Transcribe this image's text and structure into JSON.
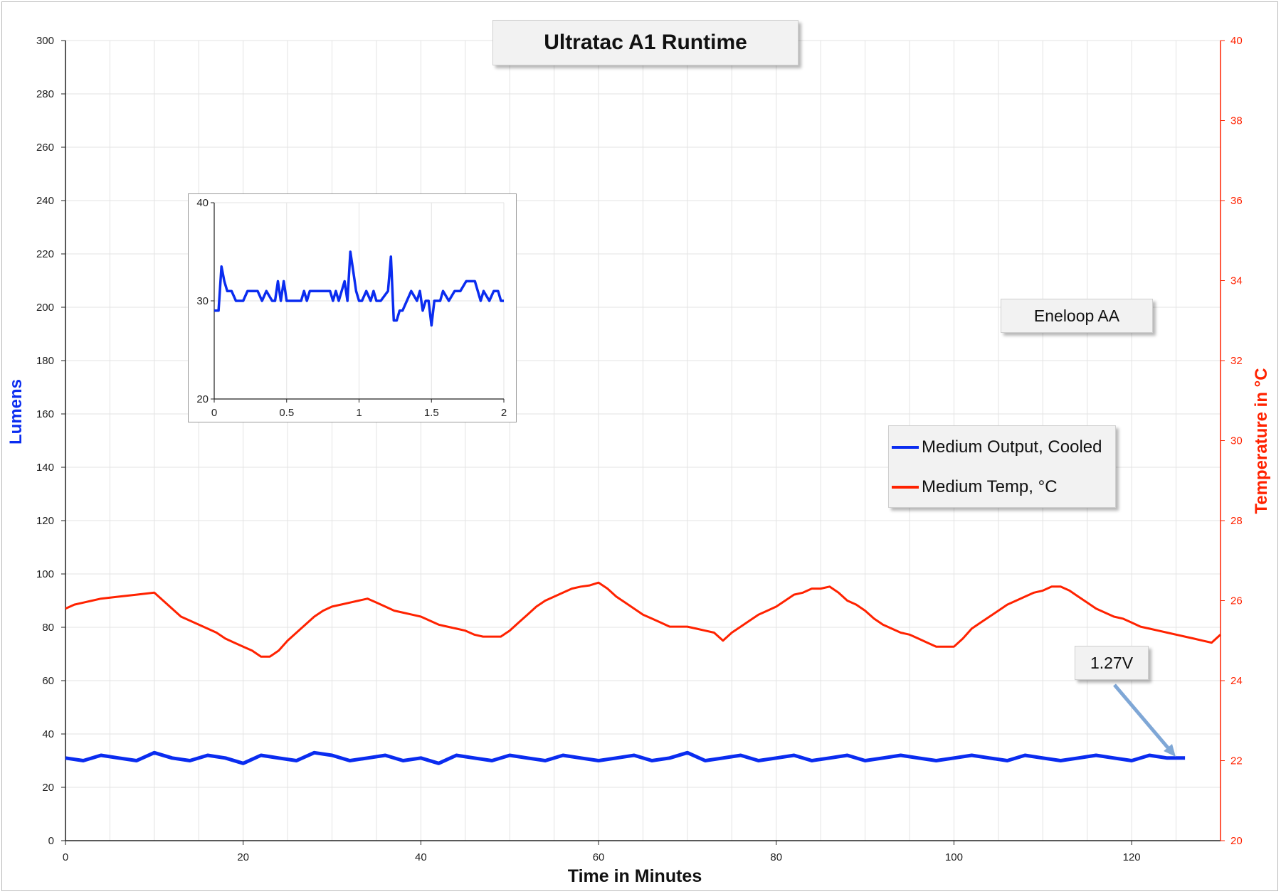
{
  "title": "Ultratac A1 Runtime",
  "battery_label": "Eneloop AA",
  "voltage_label": "1.27V",
  "colors": {
    "lumens": "#0a2cf0",
    "temp": "#ff2200",
    "grid": "#e3e3e3"
  },
  "legend": {
    "items": [
      {
        "label": "Medium Output, Cooled",
        "color": "#0a2cf0"
      },
      {
        "label": "Medium Temp, °C",
        "color": "#ff2200"
      }
    ]
  },
  "chart_data": [
    {
      "type": "line",
      "title": "Ultratac A1 Runtime",
      "xlabel": "Time in Minutes",
      "ylabel_left": "Lumens",
      "ylabel_right": "Temperature in °C",
      "xlim": [
        0,
        130
      ],
      "ylim_left": [
        0,
        300
      ],
      "ylim_right": [
        20,
        40
      ],
      "x_ticks": [
        "0",
        "20",
        "40",
        "60",
        "80",
        "100",
        "120"
      ],
      "y_left_ticks": [
        "0",
        "20",
        "40",
        "60",
        "80",
        "100",
        "120",
        "140",
        "160",
        "180",
        "200",
        "220",
        "240",
        "260",
        "280",
        "300"
      ],
      "y_right_ticks": [
        "20",
        "22",
        "24",
        "26",
        "28",
        "30",
        "32",
        "34",
        "36",
        "38",
        "40"
      ],
      "grid": true,
      "legend_position": "right",
      "series": [
        {
          "name": "Medium Output, Cooled",
          "axis": "left",
          "color": "#0a2cf0",
          "x": [
            0,
            2,
            4,
            6,
            8,
            10,
            12,
            14,
            16,
            18,
            20,
            22,
            24,
            26,
            28,
            30,
            32,
            34,
            36,
            38,
            40,
            42,
            44,
            46,
            48,
            50,
            52,
            54,
            56,
            58,
            60,
            62,
            64,
            66,
            68,
            70,
            72,
            74,
            76,
            78,
            80,
            82,
            84,
            86,
            88,
            90,
            92,
            94,
            96,
            98,
            100,
            102,
            104,
            106,
            108,
            110,
            112,
            114,
            116,
            118,
            120,
            122,
            124,
            126
          ],
          "values": [
            31,
            30,
            32,
            31,
            30,
            33,
            31,
            30,
            32,
            31,
            29,
            32,
            31,
            30,
            33,
            32,
            30,
            31,
            32,
            30,
            31,
            29,
            32,
            31,
            30,
            32,
            31,
            30,
            32,
            31,
            30,
            31,
            32,
            30,
            31,
            33,
            30,
            31,
            32,
            30,
            31,
            32,
            30,
            31,
            32,
            30,
            31,
            32,
            31,
            30,
            31,
            32,
            31,
            30,
            32,
            31,
            30,
            31,
            32,
            31,
            30,
            32,
            31,
            31
          ]
        },
        {
          "name": "Medium Temp, °C",
          "axis": "right",
          "color": "#ff2200",
          "x": [
            0,
            1,
            2,
            4,
            6,
            8,
            10,
            11,
            12,
            13,
            14,
            15,
            16,
            17,
            18,
            19,
            20,
            21,
            22,
            23,
            24,
            25,
            26,
            27,
            28,
            29,
            30,
            31,
            32,
            33,
            34,
            35,
            36,
            37,
            38,
            39,
            40,
            41,
            42,
            43,
            44,
            45,
            46,
            47,
            48,
            49,
            50,
            51,
            52,
            53,
            54,
            55,
            56,
            57,
            58,
            59,
            60,
            61,
            62,
            63,
            64,
            65,
            66,
            67,
            68,
            69,
            70,
            71,
            72,
            73,
            74,
            75,
            76,
            77,
            78,
            79,
            80,
            81,
            82,
            83,
            84,
            85,
            86,
            87,
            88,
            89,
            90,
            91,
            92,
            93,
            94,
            95,
            96,
            97,
            98,
            99,
            100,
            101,
            102,
            103,
            104,
            105,
            106,
            107,
            108,
            109,
            110,
            111,
            112,
            113,
            114,
            115,
            116,
            117,
            118,
            119,
            120,
            121,
            122,
            123,
            124,
            125,
            126,
            127,
            128,
            129,
            130
          ],
          "values": [
            25.8,
            25.9,
            25.95,
            26.05,
            26.1,
            26.15,
            26.2,
            26.0,
            25.8,
            25.6,
            25.5,
            25.4,
            25.3,
            25.2,
            25.05,
            24.95,
            24.85,
            24.75,
            24.6,
            24.6,
            24.75,
            25.0,
            25.2,
            25.4,
            25.6,
            25.75,
            25.85,
            25.9,
            25.95,
            26.0,
            26.05,
            25.95,
            25.85,
            25.75,
            25.7,
            25.65,
            25.6,
            25.5,
            25.4,
            25.35,
            25.3,
            25.25,
            25.15,
            25.1,
            25.1,
            25.1,
            25.25,
            25.45,
            25.65,
            25.85,
            26.0,
            26.1,
            26.2,
            26.3,
            26.35,
            26.38,
            26.45,
            26.3,
            26.1,
            25.95,
            25.8,
            25.65,
            25.55,
            25.45,
            25.35,
            25.35,
            25.35,
            25.3,
            25.25,
            25.2,
            25.0,
            25.2,
            25.35,
            25.5,
            25.65,
            25.75,
            25.85,
            26.0,
            26.15,
            26.2,
            26.3,
            26.3,
            26.35,
            26.2,
            26.0,
            25.9,
            25.75,
            25.55,
            25.4,
            25.3,
            25.2,
            25.15,
            25.05,
            24.95,
            24.85,
            24.85,
            24.85,
            25.05,
            25.3,
            25.45,
            25.6,
            25.75,
            25.9,
            26.0,
            26.1,
            26.2,
            26.25,
            26.35,
            26.35,
            26.25,
            26.1,
            25.95,
            25.8,
            25.7,
            25.6,
            25.55,
            25.45,
            25.35,
            25.3,
            25.25,
            25.2,
            25.15,
            25.1,
            25.05,
            25.0,
            24.95,
            25.15
          ]
        }
      ]
    },
    {
      "type": "line",
      "title": "",
      "xlim": [
        0,
        2
      ],
      "ylim": [
        20,
        40
      ],
      "x_ticks": [
        "0",
        "0.5",
        "1",
        "1.5",
        "2"
      ],
      "y_ticks": [
        "20",
        "30",
        "40"
      ],
      "grid": true,
      "series": [
        {
          "color": "#0a2cf0",
          "x": [
            0,
            0.03,
            0.05,
            0.07,
            0.09,
            0.12,
            0.15,
            0.2,
            0.23,
            0.3,
            0.33,
            0.36,
            0.4,
            0.42,
            0.44,
            0.46,
            0.48,
            0.5,
            0.55,
            0.6,
            0.62,
            0.64,
            0.66,
            0.7,
            0.75,
            0.8,
            0.82,
            0.84,
            0.86,
            0.9,
            0.92,
            0.94,
            0.96,
            0.98,
            1.0,
            1.02,
            1.05,
            1.08,
            1.1,
            1.12,
            1.15,
            1.2,
            1.22,
            1.24,
            1.26,
            1.28,
            1.3,
            1.33,
            1.36,
            1.4,
            1.42,
            1.44,
            1.46,
            1.48,
            1.5,
            1.52,
            1.54,
            1.56,
            1.58,
            1.62,
            1.66,
            1.7,
            1.74,
            1.76,
            1.8,
            1.84,
            1.86,
            1.9,
            1.93,
            1.96,
            1.98,
            2.0
          ],
          "values": [
            29,
            29,
            33.5,
            32,
            31,
            31,
            30,
            30,
            31,
            31,
            30,
            31,
            30,
            30,
            32,
            30,
            32,
            30,
            30,
            30,
            31,
            30,
            31,
            31,
            31,
            31,
            30,
            31,
            30,
            32,
            30,
            35,
            33,
            31,
            30,
            30,
            31,
            30,
            31,
            30,
            30,
            31,
            34.5,
            28,
            28,
            29,
            29,
            30,
            31,
            30,
            31,
            29,
            30,
            30,
            27.5,
            30,
            30,
            30,
            31,
            30,
            31,
            31,
            32,
            32,
            32,
            30,
            31,
            30,
            31,
            31,
            30,
            30
          ]
        }
      ]
    }
  ]
}
